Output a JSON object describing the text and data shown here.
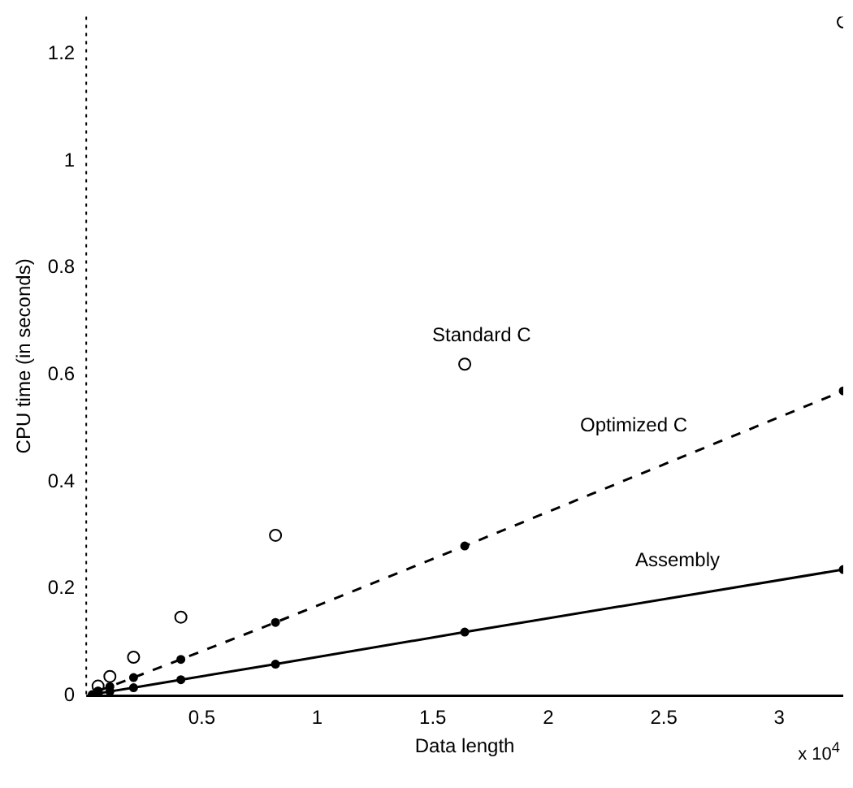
{
  "chart_data": {
    "type": "line",
    "xlabel": "Data length",
    "ylabel": "CPU time (in seconds)",
    "x": [
      0.0256,
      0.0512,
      0.1024,
      0.2048,
      0.4096,
      0.8192,
      1.6384,
      3.2768
    ],
    "series": [
      {
        "name": "Standard C",
        "type": "scatter",
        "marker": "circle",
        "color": "#000000",
        "values": [
          null,
          0.018,
          0.036,
          0.072,
          0.147,
          0.3,
          0.62,
          1.26
        ]
      },
      {
        "name": "Optimized C",
        "type": "line",
        "marker": "circle",
        "line_style": "dashed",
        "color": "#000000",
        "values": [
          null,
          0.009,
          0.017,
          0.034,
          0.068,
          0.137,
          0.28,
          0.57
        ]
      },
      {
        "name": "Assembly",
        "type": "line",
        "marker": "circle",
        "line_style": "solid",
        "color": "#000000",
        "values": [
          0.002,
          0.004,
          0.008,
          0.015,
          0.03,
          0.059,
          0.119,
          0.236
        ]
      }
    ],
    "xlim": [
      0,
      3.2768
    ],
    "ylim": [
      0,
      1.27
    ],
    "xticks": [
      0.5,
      1,
      1.5,
      2,
      2.5,
      3
    ],
    "yticks": [
      0,
      0.2,
      0.4,
      0.6,
      0.8,
      1,
      1.2
    ],
    "annotations": [
      "x 10$^{4}$"
    ],
    "grid": false,
    "legend": false
  }
}
